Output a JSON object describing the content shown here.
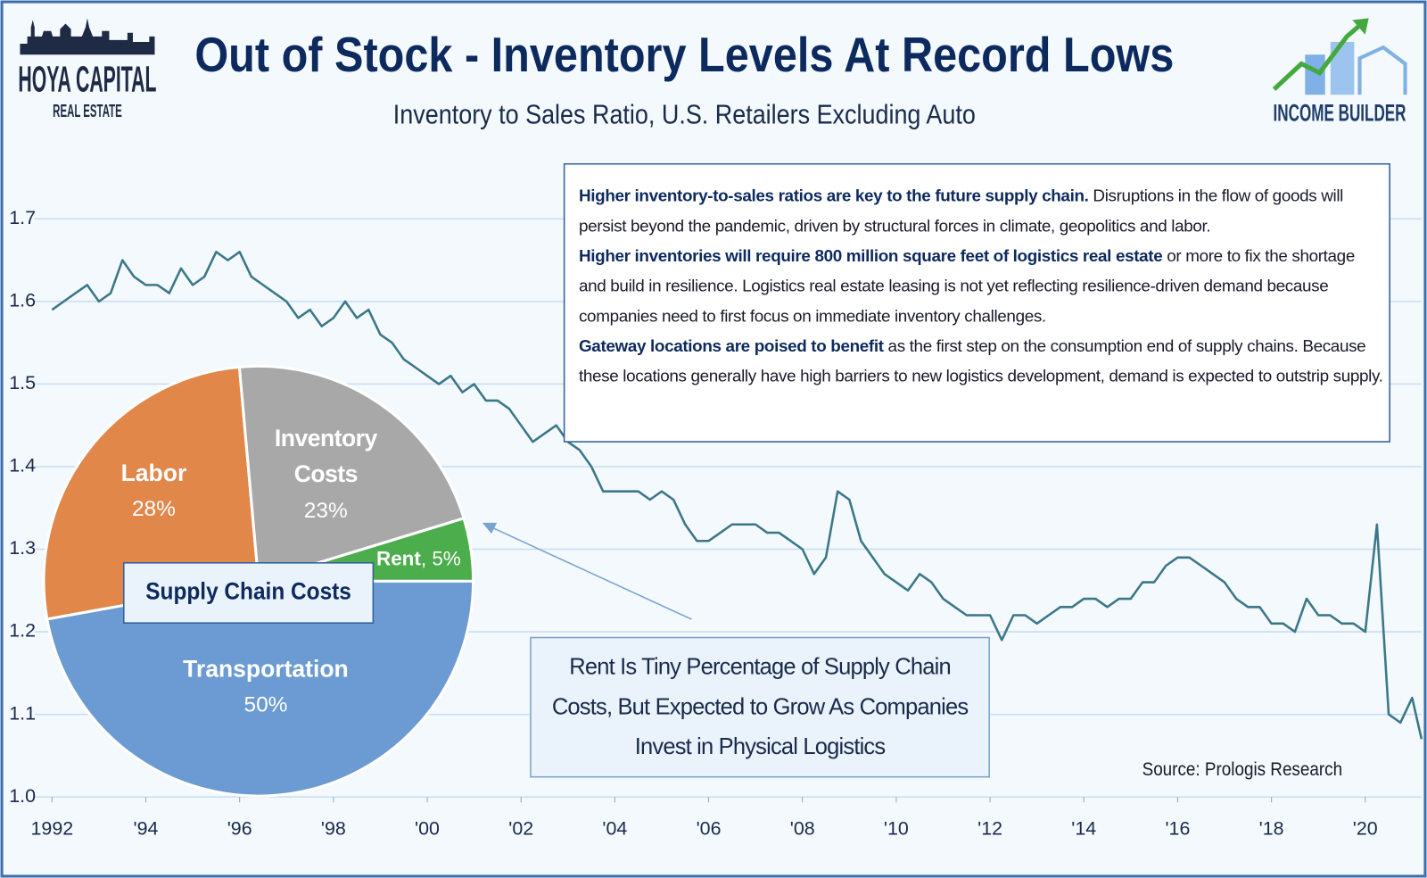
{
  "title": "Out of Stock - Inventory Levels At Record Lows",
  "subtitle": "Inventory to Sales Ratio, U.S. Retailers Excluding Auto",
  "logos": {
    "left": "HOYA CAPITAL",
    "left_sub": "REAL ESTATE",
    "right": "INCOME BUILDER"
  },
  "annotations": {
    "paragraphs": [
      [
        {
          "bold": true,
          "text": "Higher inventory-to-sales ratios are key to the future supply chain."
        },
        {
          "bold": false,
          "text": " Disruptions in the flow of goods will persist beyond the pandemic, driven by structural forces in climate, geopolitics and labor."
        }
      ],
      [
        {
          "bold": true,
          "text": "Higher inventories will require 800 million square feet of logistics real estate"
        },
        {
          "bold": false,
          "text": " or more to fix the shortage and build in resilience. Logistics real estate leasing is not yet reflecting resilience-driven demand because companies need to first focus on immediate inventory challenges."
        }
      ],
      [
        {
          "bold": true,
          "text": "Gateway locations are poised to benefit"
        },
        {
          "bold": false,
          "text": " as the first step on the consumption end of supply chains. Because these locations generally have high barriers to new logistics development, demand is expected to outstrip supply."
        }
      ]
    ],
    "callout": "Rent Is Tiny Percentage of Supply Chain Costs, But Expected to Grow As Companies Invest in Physical Logistics",
    "source": "Source: Prologis Research"
  },
  "chart_data": [
    {
      "type": "line",
      "color": "#3b7787",
      "grid": true,
      "xlim": [
        1991.9,
        2021.2
      ],
      "ylim": [
        1.0,
        1.75
      ],
      "xticks": [
        1992,
        {
          "value": 1994,
          "label": "'94"
        },
        {
          "value": 1996,
          "label": "'96"
        },
        {
          "value": 1998,
          "label": "'98"
        },
        {
          "value": 2000,
          "label": "'00"
        },
        {
          "value": 2002,
          "label": "'02"
        },
        {
          "value": 2004,
          "label": "'04"
        },
        {
          "value": 2006,
          "label": "'06"
        },
        {
          "value": 2008,
          "label": "'08"
        },
        {
          "value": 2010,
          "label": "'10"
        },
        {
          "value": 2012,
          "label": "'12"
        },
        {
          "value": 2014,
          "label": "'14"
        },
        {
          "value": 2016,
          "label": "'16"
        },
        {
          "value": 2018,
          "label": "'18"
        },
        {
          "value": 2020,
          "label": "'20"
        }
      ],
      "yticks": [
        {
          "value": 1.0,
          "label": "1.0"
        },
        1.1,
        1.2,
        1.3,
        1.4,
        1.5,
        1.6,
        1.7
      ],
      "x": [
        1992,
        1992.25,
        1992.5,
        1992.75,
        1993,
        1993.25,
        1993.5,
        1993.75,
        1994,
        1994.25,
        1994.5,
        1994.75,
        1995,
        1995.25,
        1995.5,
        1995.75,
        1996,
        1996.25,
        1996.5,
        1996.75,
        1997,
        1997.25,
        1997.5,
        1997.75,
        1998,
        1998.25,
        1998.5,
        1998.75,
        1999,
        1999.25,
        1999.5,
        1999.75,
        2000,
        2000.25,
        2000.5,
        2000.75,
        2001,
        2001.25,
        2001.5,
        2001.75,
        2002,
        2002.25,
        2002.5,
        2002.75,
        2003,
        2003.25,
        2003.5,
        2003.75,
        2004,
        2004.25,
        2004.5,
        2004.75,
        2005,
        2005.25,
        2005.5,
        2005.75,
        2006,
        2006.25,
        2006.5,
        2006.75,
        2007,
        2007.25,
        2007.5,
        2007.75,
        2008,
        2008.25,
        2008.5,
        2008.75,
        2009,
        2009.25,
        2009.5,
        2009.75,
        2010,
        2010.25,
        2010.5,
        2010.75,
        2011,
        2011.25,
        2011.5,
        2011.75,
        2012,
        2012.25,
        2012.5,
        2012.75,
        2013,
        2013.25,
        2013.5,
        2013.75,
        2014,
        2014.25,
        2014.5,
        2014.75,
        2015,
        2015.25,
        2015.5,
        2015.75,
        2016,
        2016.25,
        2016.5,
        2016.75,
        2017,
        2017.25,
        2017.5,
        2017.75,
        2018,
        2018.25,
        2018.5,
        2018.75,
        2019,
        2019.25,
        2019.5,
        2019.75,
        2020,
        2020.25,
        2020.5,
        2020.75,
        2021,
        2021.2
      ],
      "values": [
        1.59,
        1.6,
        1.61,
        1.62,
        1.6,
        1.61,
        1.65,
        1.63,
        1.62,
        1.62,
        1.61,
        1.64,
        1.62,
        1.63,
        1.66,
        1.65,
        1.66,
        1.63,
        1.62,
        1.61,
        1.6,
        1.58,
        1.59,
        1.57,
        1.58,
        1.6,
        1.58,
        1.59,
        1.56,
        1.55,
        1.53,
        1.52,
        1.51,
        1.5,
        1.51,
        1.49,
        1.5,
        1.48,
        1.48,
        1.47,
        1.45,
        1.43,
        1.44,
        1.45,
        1.43,
        1.42,
        1.4,
        1.37,
        1.37,
        1.37,
        1.37,
        1.36,
        1.37,
        1.36,
        1.33,
        1.31,
        1.31,
        1.32,
        1.33,
        1.33,
        1.33,
        1.32,
        1.32,
        1.31,
        1.3,
        1.27,
        1.29,
        1.37,
        1.36,
        1.31,
        1.29,
        1.27,
        1.26,
        1.25,
        1.27,
        1.26,
        1.24,
        1.23,
        1.22,
        1.22,
        1.22,
        1.19,
        1.22,
        1.22,
        1.21,
        1.22,
        1.23,
        1.23,
        1.24,
        1.24,
        1.23,
        1.24,
        1.24,
        1.26,
        1.26,
        1.28,
        1.29,
        1.29,
        1.28,
        1.27,
        1.26,
        1.24,
        1.23,
        1.23,
        1.21,
        1.21,
        1.2,
        1.24,
        1.22,
        1.22,
        1.21,
        1.21,
        1.2,
        1.33,
        1.1,
        1.09,
        1.12,
        1.07
      ]
    },
    {
      "type": "pie",
      "title": "Supply Chain Costs",
      "categories": [
        "Transportation",
        "Labor",
        "Inventory Costs",
        "Rent"
      ],
      "values": [
        50,
        28,
        23,
        5
      ],
      "value_labels": [
        "50%",
        "28%",
        "23%",
        ", 5%"
      ],
      "colors": [
        "#6b9bd2",
        "#e1874a",
        "#a8a8a8",
        "#4cad4c"
      ]
    }
  ]
}
